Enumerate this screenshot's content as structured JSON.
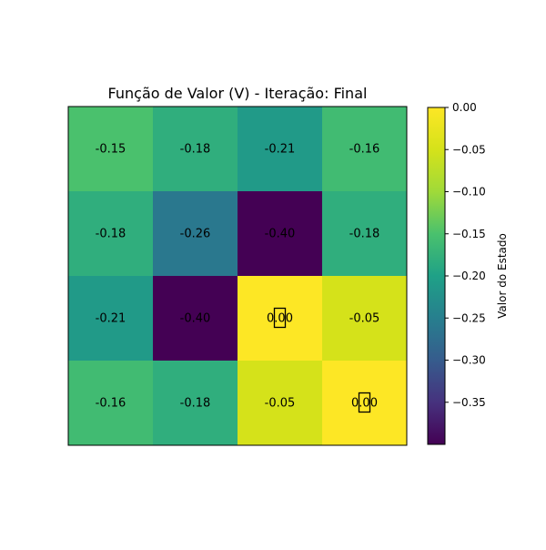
{
  "chart_data": {
    "type": "heatmap",
    "title": "Função de Valor (V) - Iteração: Final",
    "rows": 4,
    "cols": 4,
    "values": [
      [
        -0.15,
        -0.18,
        -0.21,
        -0.16
      ],
      [
        -0.18,
        -0.26,
        -0.4,
        -0.18
      ],
      [
        -0.21,
        -0.4,
        0.0,
        -0.05
      ],
      [
        -0.16,
        -0.18,
        -0.05,
        0.0
      ]
    ],
    "cell_labels": [
      [
        "-0.15",
        "-0.18",
        "-0.21",
        "-0.16"
      ],
      [
        "-0.18",
        "-0.26",
        "-0.40",
        "-0.18"
      ],
      [
        "-0.21",
        "-0.40",
        "0.00",
        "-0.05"
      ],
      [
        "-0.16",
        "-0.18",
        "-0.05",
        "0.00"
      ]
    ],
    "marked_cells": [
      [
        2,
        2
      ],
      [
        3,
        3
      ]
    ],
    "colormap": "viridis",
    "vmin": -0.4,
    "vmax": 0.0,
    "colorbar": {
      "label": "Valor do Estado",
      "ticks": [
        0.0,
        -0.05,
        -0.1,
        -0.15,
        -0.2,
        -0.25,
        -0.3,
        -0.35
      ],
      "tick_labels": [
        "0.00",
        "−0.05",
        "−0.10",
        "−0.15",
        "−0.20",
        "−0.25",
        "−0.30",
        "−0.35"
      ]
    },
    "grid": false
  }
}
